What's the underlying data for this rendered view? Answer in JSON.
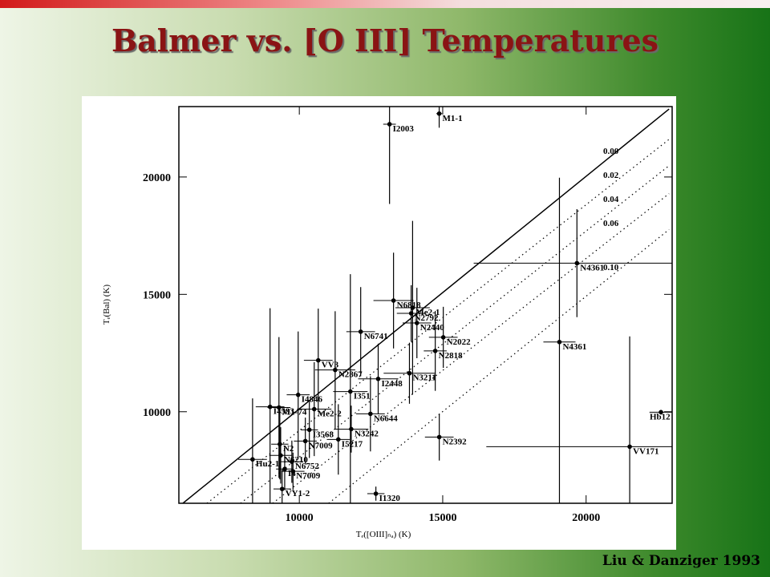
{
  "chart_data": {
    "type": "scatter",
    "title": "Balmer vs. [O III] Temperatures",
    "source": "Liu & Danziger 1993",
    "x_label": "Tₑ([OIII]ₙₐ) (K)",
    "y_label": "Tₑ(Bal) (K)",
    "xlim": [
      5800,
      23000
    ],
    "ylim": [
      6100,
      23000
    ],
    "xticks": [
      10000,
      15000,
      20000
    ],
    "yticks": [
      10000,
      15000,
      20000
    ],
    "color": "#000000",
    "lines": [
      {
        "label": "0.00",
        "style": "solid",
        "x": [
          5940,
          22893
        ],
        "y": [
          6100,
          22896
        ]
      },
      {
        "label": "0.02",
        "style": "dotted",
        "x": [
          6778,
          22893
        ],
        "y": [
          6100,
          21604
        ]
      },
      {
        "label": "0.04",
        "style": "dotted",
        "x": [
          7950,
          22893
        ],
        "y": [
          6100,
          20482
        ]
      },
      {
        "label": "0.06",
        "style": "dotted",
        "x": [
          9068,
          22893
        ],
        "y": [
          6100,
          19292
        ]
      },
      {
        "label": "0.10",
        "style": "dotted",
        "x": [
          11023,
          22893
        ],
        "y": [
          6100,
          17762
        ]
      }
    ],
    "points": [
      {
        "label": "I2003",
        "x": 13146,
        "y": 22250,
        "xerr": 220,
        "yerr": 3400
      },
      {
        "label": "M1-1",
        "x": 14877,
        "y": 22700,
        "xerr": 100,
        "yerr": 600
      },
      {
        "label": "N4361",
        "x": 19680,
        "y": 16330,
        "xerr": 3600,
        "yerr": 2300
      },
      {
        "label": "N4361",
        "x": 19070,
        "y": 12970,
        "xerr": 560,
        "yerr": 7000
      },
      {
        "label": "N6818",
        "x": 13285,
        "y": 14736,
        "xerr": 700,
        "yerr": 2040
      },
      {
        "label": "Me2-1",
        "x": 13950,
        "y": 14430,
        "xerr": 600,
        "yerr": 3700
      },
      {
        "label": "N2792",
        "x": 13900,
        "y": 14190,
        "xerr": 500,
        "yerr": 1200
      },
      {
        "label": "N2440",
        "x": 14100,
        "y": 13780,
        "xerr": 500,
        "yerr": 1500
      },
      {
        "label": "N6741",
        "x": 12140,
        "y": 13410,
        "xerr": 500,
        "yerr": 1900
      },
      {
        "label": "N2022",
        "x": 15020,
        "y": 13170,
        "xerr": 500,
        "yerr": 1300
      },
      {
        "label": "N2818",
        "x": 14740,
        "y": 12590,
        "xerr": 400,
        "yerr": 1700
      },
      {
        "label": "VV3",
        "x": 10660,
        "y": 12190,
        "xerr": 500,
        "yerr": 2200
      },
      {
        "label": "N2867",
        "x": 11250,
        "y": 11780,
        "xerr": 700,
        "yerr": 2500
      },
      {
        "label": "N3211",
        "x": 13840,
        "y": 11640,
        "xerr": 900,
        "yerr": 1300
      },
      {
        "label": "I2448",
        "x": 12750,
        "y": 11400,
        "xerr": 700,
        "yerr": 1500
      },
      {
        "label": "I351",
        "x": 11780,
        "y": 10860,
        "xerr": 600,
        "yerr": 5000
      },
      {
        "label": "I4846",
        "x": 9960,
        "y": 10720,
        "xerr": 400,
        "yerr": 2700
      },
      {
        "label": "I4593",
        "x": 8980,
        "y": 10210,
        "xerr": 500,
        "yerr": 4200
      },
      {
        "label": "M1-74",
        "x": 9290,
        "y": 10180,
        "xerr": 400,
        "yerr": 3000
      },
      {
        "label": "Me2-2",
        "x": 10520,
        "y": 10110,
        "xerr": 600,
        "yerr": 2000
      },
      {
        "label": "N6644",
        "x": 12480,
        "y": 9910,
        "xerr": 500,
        "yerr": 1600
      },
      {
        "label": "N3242",
        "x": 11810,
        "y": 9260,
        "xerr": 600,
        "yerr": 1000
      },
      {
        "label": "I3568",
        "x": 10350,
        "y": 9230,
        "xerr": 300,
        "yerr": 1200
      },
      {
        "label": "N2392",
        "x": 14880,
        "y": 8920,
        "xerr": 500,
        "yerr": 1000
      },
      {
        "label": "I5217",
        "x": 11360,
        "y": 8820,
        "xerr": 400,
        "yerr": 1500
      },
      {
        "label": "N7009",
        "x": 10210,
        "y": 8750,
        "xerr": 400,
        "yerr": 1000
      },
      {
        "label": "N2",
        "x": 9320,
        "y": 8620,
        "xerr": 300,
        "yerr": 1500
      },
      {
        "label": "N6210",
        "x": 9350,
        "y": 8140,
        "xerr": 400,
        "yerr": 1200
      },
      {
        "label": "Hu2-1",
        "x": 8370,
        "y": 7970,
        "xerr": 500,
        "yerr": 2600
      },
      {
        "label": "N6752",
        "x": 9740,
        "y": 7870,
        "xerr": 400,
        "yerr": 900
      },
      {
        "label": "I4",
        "x": 9490,
        "y": 7560,
        "xerr": 300,
        "yerr": 900
      },
      {
        "label": "N7009",
        "x": 9780,
        "y": 7460,
        "xerr": 400,
        "yerr": 800
      },
      {
        "label": "VY1-2",
        "x": 9400,
        "y": 6710,
        "xerr": 300,
        "yerr": 800
      },
      {
        "label": "I1320",
        "x": 12670,
        "y": 6510,
        "xerr": 300,
        "yerr": 300
      },
      {
        "label": "Hb12",
        "x": 22610,
        "y": 9980,
        "xerr": 400,
        "yerr": 100
      },
      {
        "label": "VV171",
        "x": 21520,
        "y": 8510,
        "xerr": 5000,
        "yerr": 4700
      }
    ]
  }
}
